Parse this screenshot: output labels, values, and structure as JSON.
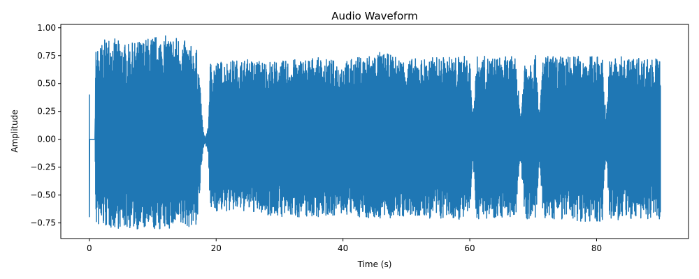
{
  "chart_data": {
    "type": "line",
    "title": "Audio Waveform",
    "xlabel": "Time (s)",
    "ylabel": "Amplitude",
    "xlim": [
      -4.5,
      94.5
    ],
    "ylim": [
      -0.89,
      1.03
    ],
    "xticks": [
      0,
      20,
      40,
      60,
      80
    ],
    "xtick_labels": [
      "0",
      "20",
      "40",
      "60",
      "80"
    ],
    "yticks": [
      -0.75,
      -0.5,
      -0.25,
      0.0,
      0.25,
      0.5,
      0.75,
      1.0
    ],
    "ytick_labels": [
      "−0.75",
      "−0.50",
      "−0.25",
      "0.00",
      "0.25",
      "0.50",
      "0.75",
      "1.00"
    ],
    "grid": false,
    "series": [
      {
        "color": "#1f77b4",
        "duration_s": 90.1,
        "envelope": [
          {
            "t": 0.0,
            "max": 0.0,
            "min": 0.0
          },
          {
            "t": 0.9,
            "max": 0.0,
            "min": 0.0
          },
          {
            "t": 1.0,
            "max": 0.8,
            "min": -0.78
          },
          {
            "t": 3.0,
            "max": 0.93,
            "min": -0.8
          },
          {
            "t": 6.0,
            "max": 0.85,
            "min": -0.8
          },
          {
            "t": 10.0,
            "max": 0.93,
            "min": -0.82
          },
          {
            "t": 14.0,
            "max": 0.93,
            "min": -0.8
          },
          {
            "t": 17.0,
            "max": 0.8,
            "min": -0.78
          },
          {
            "t": 17.5,
            "max": 0.5,
            "min": -0.45
          },
          {
            "t": 18.2,
            "max": 0.05,
            "min": -0.1
          },
          {
            "t": 18.8,
            "max": 0.15,
            "min": -0.2
          },
          {
            "t": 19.0,
            "max": 0.7,
            "min": -0.65
          },
          {
            "t": 25.0,
            "max": 0.72,
            "min": -0.65
          },
          {
            "t": 30.0,
            "max": 0.7,
            "min": -0.7
          },
          {
            "t": 35.0,
            "max": 0.74,
            "min": -0.7
          },
          {
            "t": 40.0,
            "max": 0.7,
            "min": -0.68
          },
          {
            "t": 45.5,
            "max": 0.79,
            "min": -0.72
          },
          {
            "t": 50.0,
            "max": 0.72,
            "min": -0.7
          },
          {
            "t": 55.0,
            "max": 0.74,
            "min": -0.72
          },
          {
            "t": 60.0,
            "max": 0.75,
            "min": -0.72
          },
          {
            "t": 65.0,
            "max": 0.74,
            "min": -0.7
          },
          {
            "t": 70.0,
            "max": 0.75,
            "min": -0.72
          },
          {
            "t": 75.0,
            "max": 0.75,
            "min": -0.72
          },
          {
            "t": 80.0,
            "max": 0.75,
            "min": -0.75
          },
          {
            "t": 85.0,
            "max": 0.74,
            "min": -0.72
          },
          {
            "t": 90.1,
            "max": 0.73,
            "min": -0.72
          }
        ],
        "dips": [
          {
            "t": 18.2,
            "width": 0.8
          },
          {
            "t": 60.5,
            "width": 0.5
          },
          {
            "t": 68.0,
            "width": 0.7
          },
          {
            "t": 71.0,
            "width": 0.5
          },
          {
            "t": 81.5,
            "width": 0.6
          }
        ]
      }
    ]
  }
}
